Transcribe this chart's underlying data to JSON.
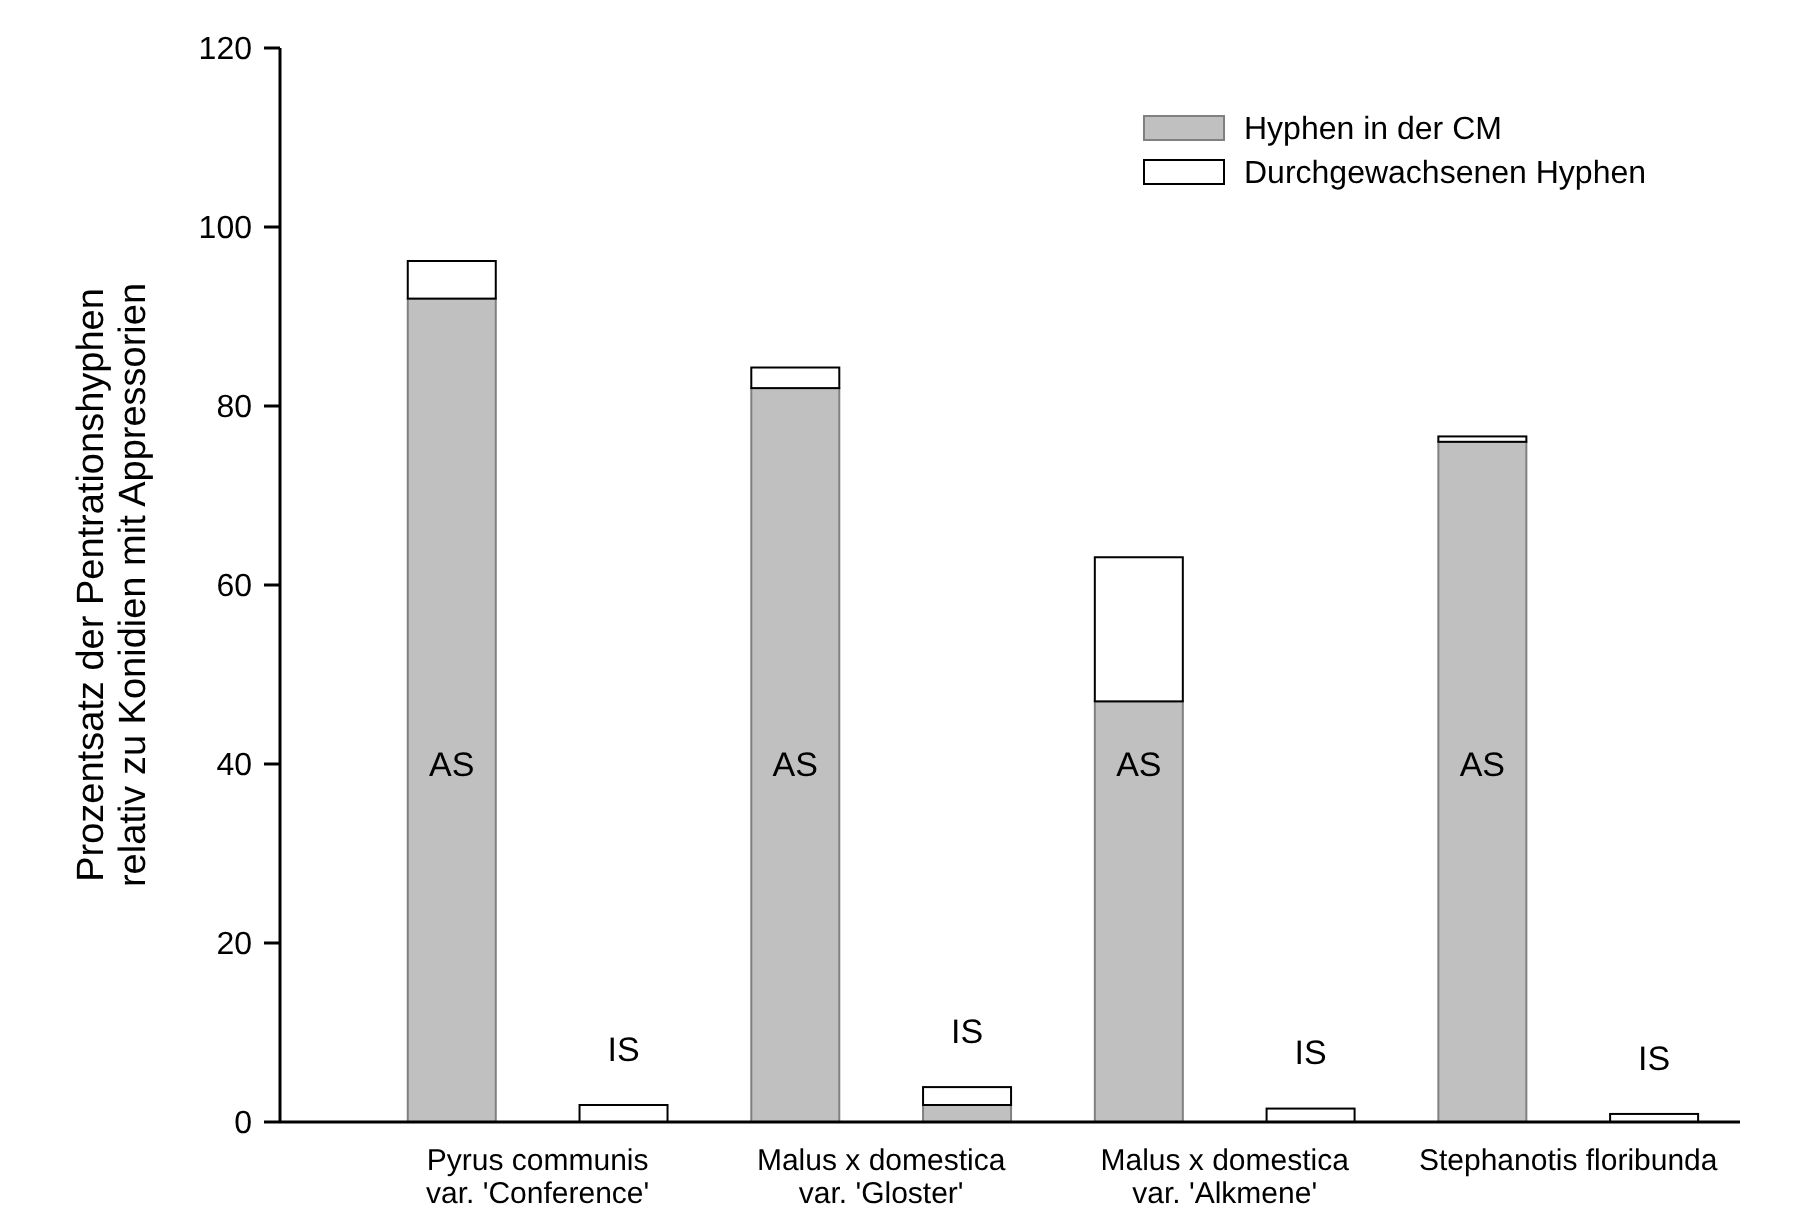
{
  "chart_data": {
    "type": "bar",
    "stacked": true,
    "categories": [
      "AS",
      "IS",
      "AS",
      "IS",
      "AS",
      "IS",
      "AS",
      "IS"
    ],
    "ylabel": "Prozentsatz der Pentrationshyphen\nrelativ zu Konidien mit Appressorien",
    "ylim": [
      0,
      120
    ],
    "yticks": [
      0,
      20,
      40,
      60,
      80,
      100,
      120
    ],
    "grid": false,
    "legend": "top right",
    "series": [
      {
        "name": "Hyphen in der CM",
        "color": "#c0c0c0",
        "values": [
          92,
          null,
          82,
          1.9,
          47,
          null,
          76,
          null
        ]
      },
      {
        "name": "Durchgewachsenen Hyphen",
        "color": "#ffffff",
        "values": [
          4.2,
          1.9,
          2.3,
          2,
          16.1,
          1.5,
          0.6,
          0.9
        ]
      }
    ],
    "annotations": [
      "Pyrus communis\nvar. 'Conference'",
      "Malus x domestica\nvar. 'Gloster'",
      "Malus x domestica\nvar. 'Alkmene'",
      "Stephanotis floribunda"
    ]
  }
}
